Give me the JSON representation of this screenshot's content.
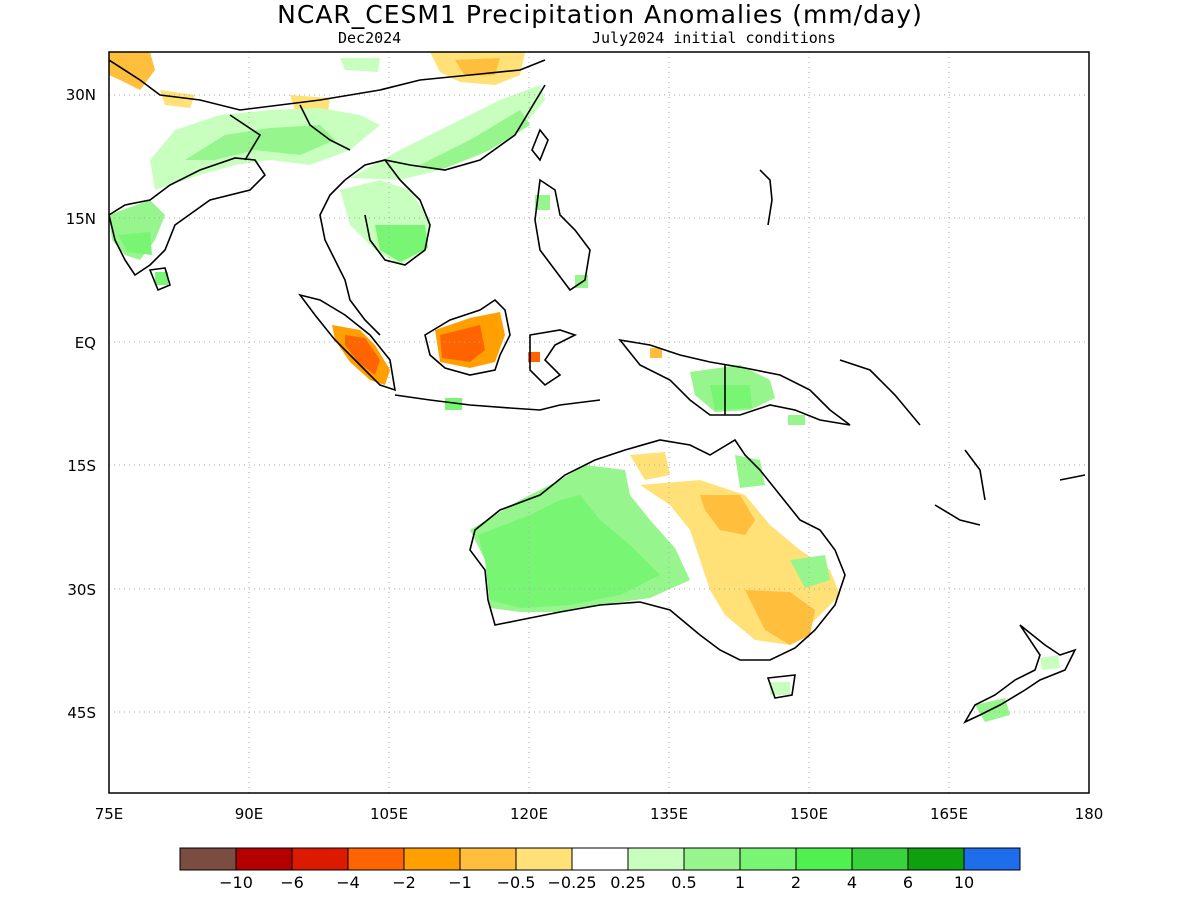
{
  "title": "NCAR_CESM1 Precipitation Anomalies (mm/day)",
  "subtitle_left": "Dec2024",
  "subtitle_right": "July2024 initial conditions",
  "map": {
    "lon_range": [
      75,
      180
    ],
    "lat_range": [
      -55,
      35
    ],
    "x_ticks": [
      "75E",
      "90E",
      "105E",
      "120E",
      "135E",
      "150E",
      "165E",
      "180"
    ],
    "y_ticks": [
      "30N",
      "15N",
      "EQ",
      "15S",
      "30S",
      "45S"
    ],
    "grid": "dotted"
  },
  "colorbar": {
    "colors": [
      "#7a4d40",
      "#b40000",
      "#dc1a00",
      "#ff6400",
      "#ffa000",
      "#ffbe3c",
      "#ffe178",
      "#ffffff",
      "#c8ffbe",
      "#96f58c",
      "#78f573",
      "#50f050",
      "#37d23c",
      "#0fa00f",
      "#1e6eeb"
    ],
    "labels": [
      "−10",
      "−6",
      "−4",
      "−2",
      "−1",
      "−0.5",
      "−0.25",
      "0.25",
      "0.5",
      "1",
      "2",
      "4",
      "6",
      "10"
    ]
  },
  "anomaly_regions": [
    {
      "name": "india-west",
      "color": "#78f573"
    },
    {
      "name": "himalaya-china",
      "color": "#96f58c"
    },
    {
      "name": "south-china",
      "color": "#96f58c"
    },
    {
      "name": "indochina",
      "color": "#78f573"
    },
    {
      "name": "sumatra",
      "color": "#ff6400"
    },
    {
      "name": "borneo",
      "color": "#ff6400"
    },
    {
      "name": "new-guinea",
      "color": "#78f573"
    },
    {
      "name": "west-australia",
      "color": "#78f573"
    },
    {
      "name": "east-australia",
      "color": "#ffe178"
    },
    {
      "name": "new-zealand",
      "color": "#78f573"
    }
  ]
}
